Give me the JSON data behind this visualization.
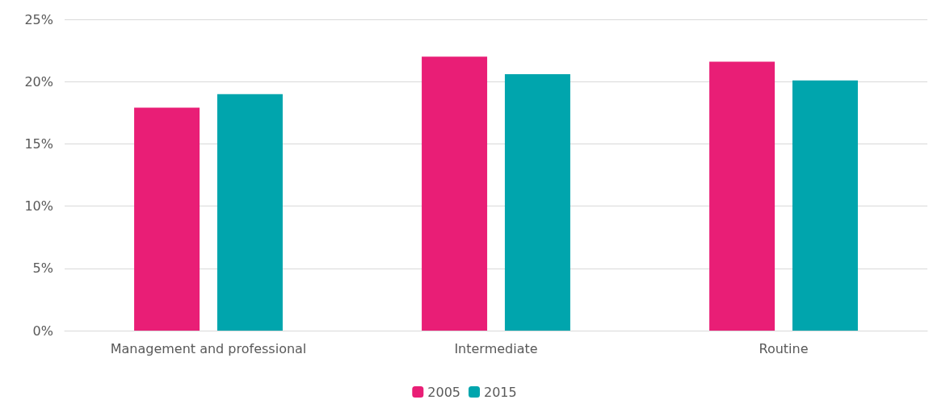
{
  "chart_data": {
    "type": "bar",
    "categories": [
      "Management and professional",
      "Intermediate",
      "Routine"
    ],
    "series": [
      {
        "name": "2005",
        "color": "#e91e76",
        "values": [
          17.9,
          22.0,
          21.6
        ]
      },
      {
        "name": "2015",
        "color": "#00a5ad",
        "values": [
          19.0,
          20.6,
          20.1
        ]
      }
    ],
    "ylim": [
      0,
      25
    ],
    "yticks": [
      {
        "value": 0,
        "label": "0%"
      },
      {
        "value": 5,
        "label": "5%"
      },
      {
        "value": 10,
        "label": "10%"
      },
      {
        "value": 15,
        "label": "15%"
      },
      {
        "value": 20,
        "label": "20%"
      },
      {
        "value": 25,
        "label": "25%"
      }
    ],
    "grid": "y",
    "legend": "bottom"
  }
}
